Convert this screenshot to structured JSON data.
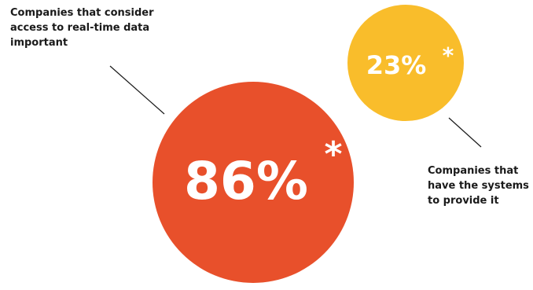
{
  "colors": {
    "large_circle": "#e8502b",
    "small_circle": "#f9bd2b",
    "value_text": "#ffffff",
    "caption_text": "#1a1a1a",
    "leader_line": "#1a1a1a"
  },
  "chart_data": {
    "type": "bubble",
    "items": [
      {
        "value": 86,
        "label": "86%",
        "marker": "*",
        "caption": [
          "Companies that consider",
          "access to real-time data",
          "important"
        ]
      },
      {
        "value": 23,
        "label": "23%",
        "marker": "*",
        "caption": [
          "Companies that",
          "have the systems",
          "to provide it"
        ]
      }
    ]
  }
}
